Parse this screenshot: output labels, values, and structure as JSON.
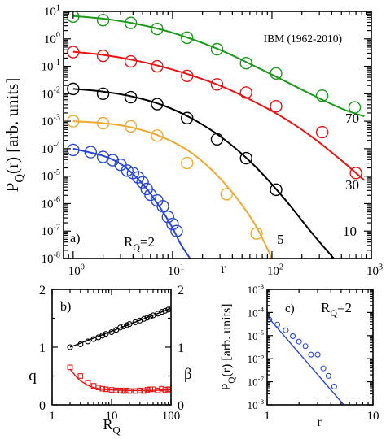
{
  "colors": {
    "green": "#1b9a1b",
    "red": "#e81414",
    "black": "#000000",
    "orange": "#f0a830",
    "blue": "#2846d8"
  },
  "chart_data": [
    {
      "panel": "a",
      "type": "scatter",
      "title": "",
      "annotation": "IBM (1962-2010)",
      "panel_label": "a)",
      "xlabel": "r",
      "ylabel": "P_Q(r) [arb. units]",
      "x_scale": "log",
      "y_scale": "log",
      "xlim": [
        0.8,
        1000
      ],
      "ylim": [
        1e-08,
        10
      ],
      "x_ticks": [
        {
          "v": 1,
          "m": "10",
          "e": "0"
        },
        {
          "v": 10,
          "m": "10",
          "e": "1"
        },
        {
          "v": 100,
          "m": "10",
          "e": "2"
        },
        {
          "v": 1000,
          "m": "10",
          "e": "3"
        }
      ],
      "y_ticks": [
        {
          "v": 1e-08,
          "m": "10",
          "e": "-8"
        },
        {
          "v": 1e-07,
          "m": "10",
          "e": "-7"
        },
        {
          "v": 1e-06,
          "m": "10",
          "e": "-6"
        },
        {
          "v": 1e-05,
          "m": "10",
          "e": "-5"
        },
        {
          "v": 0.0001,
          "m": "10",
          "e": "-4"
        },
        {
          "v": 0.001,
          "m": "10",
          "e": "-3"
        },
        {
          "v": 0.01,
          "m": "10",
          "e": "-2"
        },
        {
          "v": 0.1,
          "m": "10",
          "e": "-1"
        },
        {
          "v": 1,
          "m": "10",
          "e": "0"
        },
        {
          "v": 10,
          "m": "10",
          "e": "1"
        }
      ],
      "series": [
        {
          "label": "70",
          "color": "#1b9a1b",
          "points": [
            [
              1,
              6.5
            ],
            [
              2,
              4.8
            ],
            [
              3.8,
              3.8
            ],
            [
              7,
              2.3
            ],
            [
              14,
              1.1
            ],
            [
              28,
              0.42
            ],
            [
              55,
              0.13
            ],
            [
              110,
              0.055
            ],
            [
              320,
              0.0085
            ],
            [
              680,
              0.0032
            ]
          ],
          "fit": [
            [
              1,
              6.8
            ],
            [
              2,
              5.4
            ],
            [
              4,
              3.7
            ],
            [
              8,
              2.1
            ],
            [
              16,
              0.95
            ],
            [
              32,
              0.36
            ],
            [
              64,
              0.11
            ],
            [
              128,
              0.032
            ],
            [
              256,
              0.009
            ],
            [
              512,
              0.0028
            ],
            [
              850,
              0.0015
            ]
          ]
        },
        {
          "label": "30",
          "color": "#e81414",
          "points": [
            [
              1,
              0.33
            ],
            [
              2,
              0.24
            ],
            [
              3.8,
              0.15
            ],
            [
              7,
              0.1
            ],
            [
              14,
              0.045
            ],
            [
              28,
              0.022
            ],
            [
              55,
              0.011
            ],
            [
              110,
              0.0035
            ],
            [
              320,
              0.0004
            ],
            [
              700,
              1.3e-05
            ]
          ],
          "fit": [
            [
              1,
              0.34
            ],
            [
              2,
              0.26
            ],
            [
              4,
              0.17
            ],
            [
              8,
              0.095
            ],
            [
              16,
              0.045
            ],
            [
              32,
              0.018
            ],
            [
              64,
              0.0055
            ],
            [
              128,
              0.0014
            ],
            [
              256,
              0.00026
            ],
            [
              512,
              3.5e-05
            ],
            [
              850,
              7e-06
            ]
          ]
        },
        {
          "label": "10",
          "color": "#000000",
          "points": [
            [
              1,
              0.015
            ],
            [
              2,
              0.01
            ],
            [
              3.8,
              0.0075
            ],
            [
              7,
              0.0042
            ],
            [
              14,
              0.0013
            ],
            [
              28,
              0.00022
            ],
            [
              55,
              4.5e-05
            ],
            [
              110,
              3.2e-06
            ]
          ],
          "fit": [
            [
              1,
              0.015
            ],
            [
              2,
              0.012
            ],
            [
              4,
              0.0078
            ],
            [
              8,
              0.0038
            ],
            [
              16,
              0.0012
            ],
            [
              32,
              0.00024
            ],
            [
              64,
              2.8e-05
            ],
            [
              128,
              1.8e-06
            ],
            [
              256,
              8e-08
            ],
            [
              420,
              1e-08
            ]
          ]
        },
        {
          "label": "5",
          "color": "#f0a830",
          "points": [
            [
              1,
              0.001
            ],
            [
              2,
              0.00085
            ],
            [
              3.8,
              0.00065
            ],
            [
              7,
              0.0003
            ],
            [
              14,
              3e-05
            ],
            [
              35,
              2.2e-06
            ],
            [
              70,
              8.2e-08
            ]
          ],
          "fit": [
            [
              1,
              0.001
            ],
            [
              2,
              0.00085
            ],
            [
              4,
              0.00058
            ],
            [
              8,
              0.00026
            ],
            [
              16,
              6.5e-05
            ],
            [
              32,
              6.5e-06
            ],
            [
              64,
              2.4e-07
            ],
            [
              100,
              1e-08
            ]
          ]
        },
        {
          "label": "R_Q=2",
          "color": "#2846d8",
          "points": [
            [
              1,
              9e-05
            ],
            [
              1.5,
              7.5e-05
            ],
            [
              2,
              5e-05
            ],
            [
              2.5,
              3.8e-05
            ],
            [
              3,
              2.6e-05
            ],
            [
              3.5,
              1.6e-05
            ],
            [
              4,
              1.3e-05
            ],
            [
              4.5,
              9e-06
            ],
            [
              5,
              6e-06
            ],
            [
              5.5,
              3.4e-06
            ],
            [
              6,
              2.1e-06
            ],
            [
              7,
              1.3e-06
            ],
            [
              8,
              8e-07
            ],
            [
              9,
              3.3e-07
            ],
            [
              10,
              1.8e-07
            ],
            [
              11,
              1e-07
            ]
          ],
          "fit": [
            [
              1,
              0.0001
            ],
            [
              2,
              5.5e-05
            ],
            [
              3,
              2.8e-05
            ],
            [
              4,
              1.2e-05
            ],
            [
              5,
              5.2e-06
            ],
            [
              6,
              2.3e-06
            ],
            [
              8,
              5e-07
            ],
            [
              10,
              1.3e-07
            ],
            [
              12,
              3.5e-08
            ],
            [
              15,
              1e-08
            ]
          ]
        }
      ]
    },
    {
      "panel": "b",
      "type": "scatter",
      "panel_label": "b)",
      "xlabel": "R_Q",
      "ylabel_left": "q",
      "ylabel_right": "β",
      "x_scale": "log",
      "xlim": [
        1,
        100
      ],
      "ylim": [
        0,
        2
      ],
      "y2lim": [
        0,
        2
      ],
      "x_ticks": [
        {
          "v": 1,
          "t": "1"
        },
        {
          "v": 10,
          "t": "10"
        },
        {
          "v": 100,
          "t": "100"
        }
      ],
      "y_ticks": [
        {
          "v": 0,
          "t": "0"
        },
        {
          "v": 1,
          "t": "1"
        },
        {
          "v": 2,
          "t": "2"
        }
      ],
      "y2_ticks": [
        {
          "v": 0,
          "t": "0"
        },
        {
          "v": 1,
          "t": "1"
        },
        {
          "v": 2,
          "t": "2"
        }
      ],
      "series": [
        {
          "name": "q",
          "color": "#000000",
          "marker": "circle",
          "points": [
            [
              2,
              1.0
            ],
            [
              3,
              1.05
            ],
            [
              4,
              1.1
            ],
            [
              5,
              1.14
            ],
            [
              6,
              1.17
            ],
            [
              7,
              1.2
            ],
            [
              8,
              1.23
            ],
            [
              10,
              1.26
            ],
            [
              12,
              1.3
            ],
            [
              14,
              1.34
            ],
            [
              16,
              1.36
            ],
            [
              18,
              1.38
            ],
            [
              20,
              1.4
            ],
            [
              25,
              1.43
            ],
            [
              30,
              1.46
            ],
            [
              35,
              1.49
            ],
            [
              40,
              1.51
            ],
            [
              45,
              1.53
            ],
            [
              50,
              1.55
            ],
            [
              60,
              1.58
            ],
            [
              70,
              1.61
            ],
            [
              80,
              1.63
            ],
            [
              90,
              1.65
            ],
            [
              100,
              1.67
            ]
          ],
          "fit": [
            [
              2,
              1.0
            ],
            [
              100,
              1.67
            ]
          ]
        },
        {
          "name": "β",
          "color": "#e81414",
          "marker": "square",
          "points": [
            [
              2,
              0.65
            ],
            [
              3,
              0.5
            ],
            [
              4,
              0.38
            ],
            [
              5,
              0.33
            ],
            [
              6,
              0.3
            ],
            [
              7,
              0.28
            ],
            [
              8,
              0.27
            ],
            [
              10,
              0.26
            ],
            [
              12,
              0.25
            ],
            [
              14,
              0.25
            ],
            [
              16,
              0.24
            ],
            [
              18,
              0.25
            ],
            [
              20,
              0.24
            ],
            [
              25,
              0.24
            ],
            [
              30,
              0.25
            ],
            [
              35,
              0.24
            ],
            [
              40,
              0.26
            ],
            [
              45,
              0.27
            ],
            [
              50,
              0.27
            ],
            [
              60,
              0.25
            ],
            [
              70,
              0.28
            ],
            [
              80,
              0.26
            ],
            [
              90,
              0.27
            ],
            [
              100,
              0.26
            ]
          ],
          "fit": [
            [
              2,
              0.62
            ],
            [
              2.5,
              0.5
            ],
            [
              3,
              0.42
            ],
            [
              4,
              0.34
            ],
            [
              5,
              0.3
            ],
            [
              7,
              0.27
            ],
            [
              10,
              0.26
            ],
            [
              20,
              0.25
            ],
            [
              40,
              0.25
            ],
            [
              100,
              0.26
            ]
          ]
        }
      ]
    },
    {
      "panel": "c",
      "type": "scatter",
      "panel_label": "c)",
      "annotation": "R_Q=2",
      "xlabel": "r",
      "ylabel": "P_Q(r) [arb. units]",
      "x_scale": "log",
      "y_scale": "log",
      "xlim": [
        1,
        10
      ],
      "ylim": [
        1e-08,
        0.001
      ],
      "x_ticks": [
        {
          "v": 1,
          "t": "1"
        },
        {
          "v": 10,
          "t": "10"
        }
      ],
      "y_ticks": [
        {
          "v": 1e-08,
          "m": "10",
          "e": "-8"
        },
        {
          "v": 1e-07,
          "m": "10",
          "e": "-7"
        },
        {
          "v": 1e-06,
          "m": "10",
          "e": "-6"
        },
        {
          "v": 1e-05,
          "m": "10",
          "e": "-5"
        },
        {
          "v": 0.0001,
          "m": "10",
          "e": "-4"
        },
        {
          "v": 0.001,
          "m": "10",
          "e": "-3"
        }
      ],
      "series": [
        {
          "name": "R_Q=2",
          "color": "#2846d8",
          "marker": "circle",
          "points": [
            [
              1.05,
              5e-05
            ],
            [
              1.25,
              3e-05
            ],
            [
              1.5,
              1.7e-05
            ],
            [
              1.75,
              9.5e-06
            ],
            [
              2,
              5.5e-06
            ],
            [
              2.3,
              3.5e-06
            ],
            [
              2.6,
              1.5e-06
            ],
            [
              3,
              1.5e-06
            ],
            [
              3.4,
              3.8e-07
            ],
            [
              3.8,
              1.8e-07
            ],
            [
              4.3,
              6.2e-08
            ]
          ],
          "fit": [
            [
              1,
              7e-05
            ],
            [
              5.3,
              1e-08
            ]
          ]
        }
      ]
    }
  ]
}
